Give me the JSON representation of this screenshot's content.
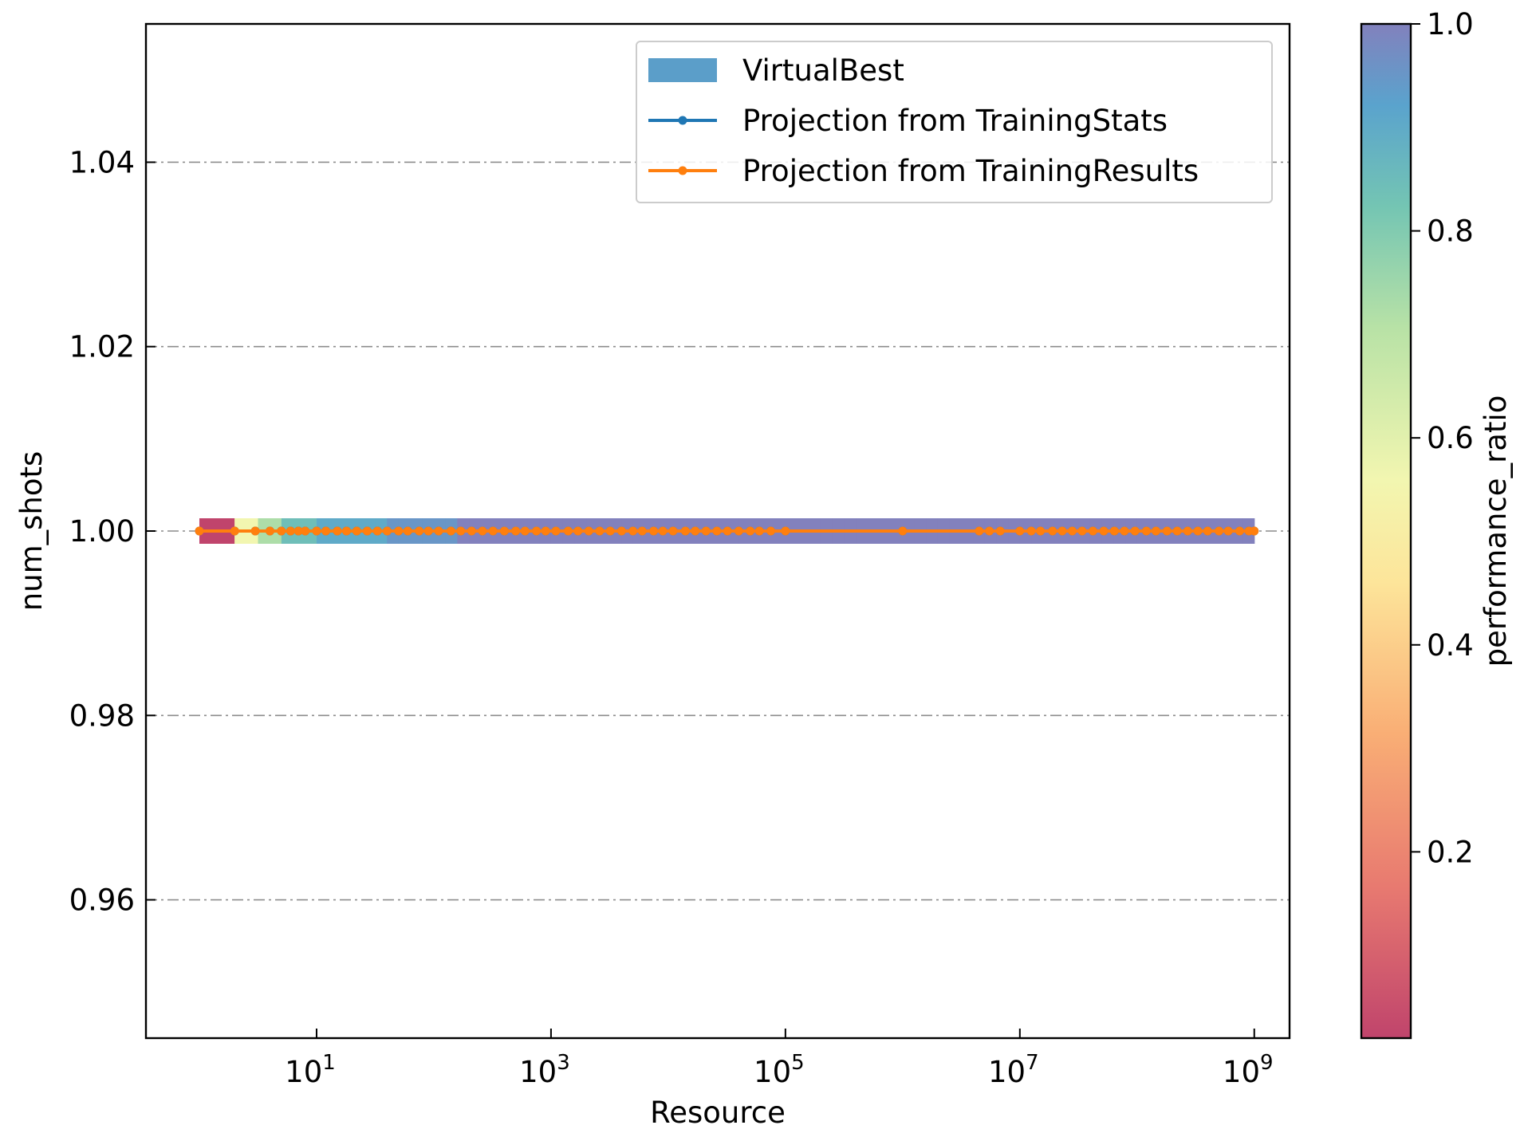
{
  "chart_data": {
    "type": "line",
    "xlabel": "Resource",
    "ylabel": "num_shots",
    "xscale": "log",
    "xlim": [
      0.35,
      2000000000
    ],
    "ylim": [
      0.945,
      1.055
    ],
    "x_ticks": [
      {
        "base": "10",
        "exp": "1",
        "value": 10
      },
      {
        "base": "10",
        "exp": "3",
        "value": 1000
      },
      {
        "base": "10",
        "exp": "5",
        "value": 100000
      },
      {
        "base": "10",
        "exp": "7",
        "value": 10000000
      },
      {
        "base": "10",
        "exp": "9",
        "value": 1000000000
      }
    ],
    "y_ticks": [
      {
        "label": "0.96",
        "value": 0.96
      },
      {
        "label": "0.98",
        "value": 0.98
      },
      {
        "label": "1.00",
        "value": 1.0
      },
      {
        "label": "1.02",
        "value": 1.02
      },
      {
        "label": "1.04",
        "value": 1.04
      }
    ],
    "grid": "y",
    "legend_position": "top-right",
    "legend": [
      {
        "label": "VirtualBest",
        "kind": "patch",
        "color": "#5b9ec9"
      },
      {
        "label": "Projection from TrainingStats",
        "kind": "line",
        "color": "#1f77b4"
      },
      {
        "label": "Projection from TrainingResults",
        "kind": "line",
        "color": "#ff7f0e"
      }
    ],
    "virtual_best": {
      "y": 1.0,
      "x_start_log10": 0,
      "x_end_log10": 9,
      "segments": 90,
      "color_note": "performance_ratio ramps from low (red) at x=1 to ~1.0 (purple) by x~100"
    },
    "series": [
      {
        "name": "Projection from TrainingStats",
        "color": "#1f77b4",
        "y": 1.0,
        "x": [
          1,
          2,
          3,
          4,
          5,
          6,
          7,
          8,
          10,
          12,
          15,
          18,
          22,
          27,
          33,
          40,
          50,
          60,
          75,
          90,
          110,
          140,
          170,
          210,
          260,
          320,
          400,
          500,
          600,
          750,
          900,
          1100,
          1400,
          1700,
          2100,
          2600,
          3200,
          4000,
          5000,
          6000,
          7500,
          9000,
          11000,
          14000,
          17000,
          21000,
          26000,
          32000,
          40000,
          50000,
          60000,
          75000,
          100000,
          1000000,
          4500000,
          5500000,
          6800000,
          10000000,
          12500000,
          15000000,
          19000000,
          23000000,
          28000000,
          34000000,
          42000000,
          52000000,
          64000000,
          78000000,
          96000000,
          120000000,
          145000000,
          180000000,
          220000000,
          270000000,
          330000000,
          400000000,
          500000000,
          600000000,
          750000000,
          900000000,
          1000000000
        ]
      },
      {
        "name": "Projection from TrainingResults",
        "color": "#ff7f0e",
        "y": 1.0,
        "x": [
          1,
          2,
          3,
          4,
          5,
          6,
          7,
          8,
          10,
          12,
          15,
          18,
          22,
          27,
          33,
          40,
          50,
          60,
          75,
          90,
          110,
          140,
          170,
          210,
          260,
          320,
          400,
          500,
          600,
          750,
          900,
          1100,
          1400,
          1700,
          2100,
          2600,
          3200,
          4000,
          5000,
          6000,
          7500,
          9000,
          11000,
          14000,
          17000,
          21000,
          26000,
          32000,
          40000,
          50000,
          60000,
          75000,
          100000,
          1000000,
          4500000,
          5500000,
          6800000,
          10000000,
          12500000,
          15000000,
          19000000,
          23000000,
          28000000,
          34000000,
          42000000,
          52000000,
          64000000,
          78000000,
          96000000,
          120000000,
          145000000,
          180000000,
          220000000,
          270000000,
          330000000,
          400000000,
          500000000,
          600000000,
          750000000,
          900000000,
          1000000000
        ]
      }
    ],
    "colorbar": {
      "label": "performance_ratio",
      "range": [
        0.02,
        1.0
      ],
      "cmap": "Spectral",
      "ticks": [
        {
          "label": "0.2",
          "value": 0.2
        },
        {
          "label": "0.4",
          "value": 0.4
        },
        {
          "label": "0.6",
          "value": 0.6
        },
        {
          "label": "0.8",
          "value": 0.8
        },
        {
          "label": "1.0",
          "value": 1.0
        }
      ]
    }
  }
}
